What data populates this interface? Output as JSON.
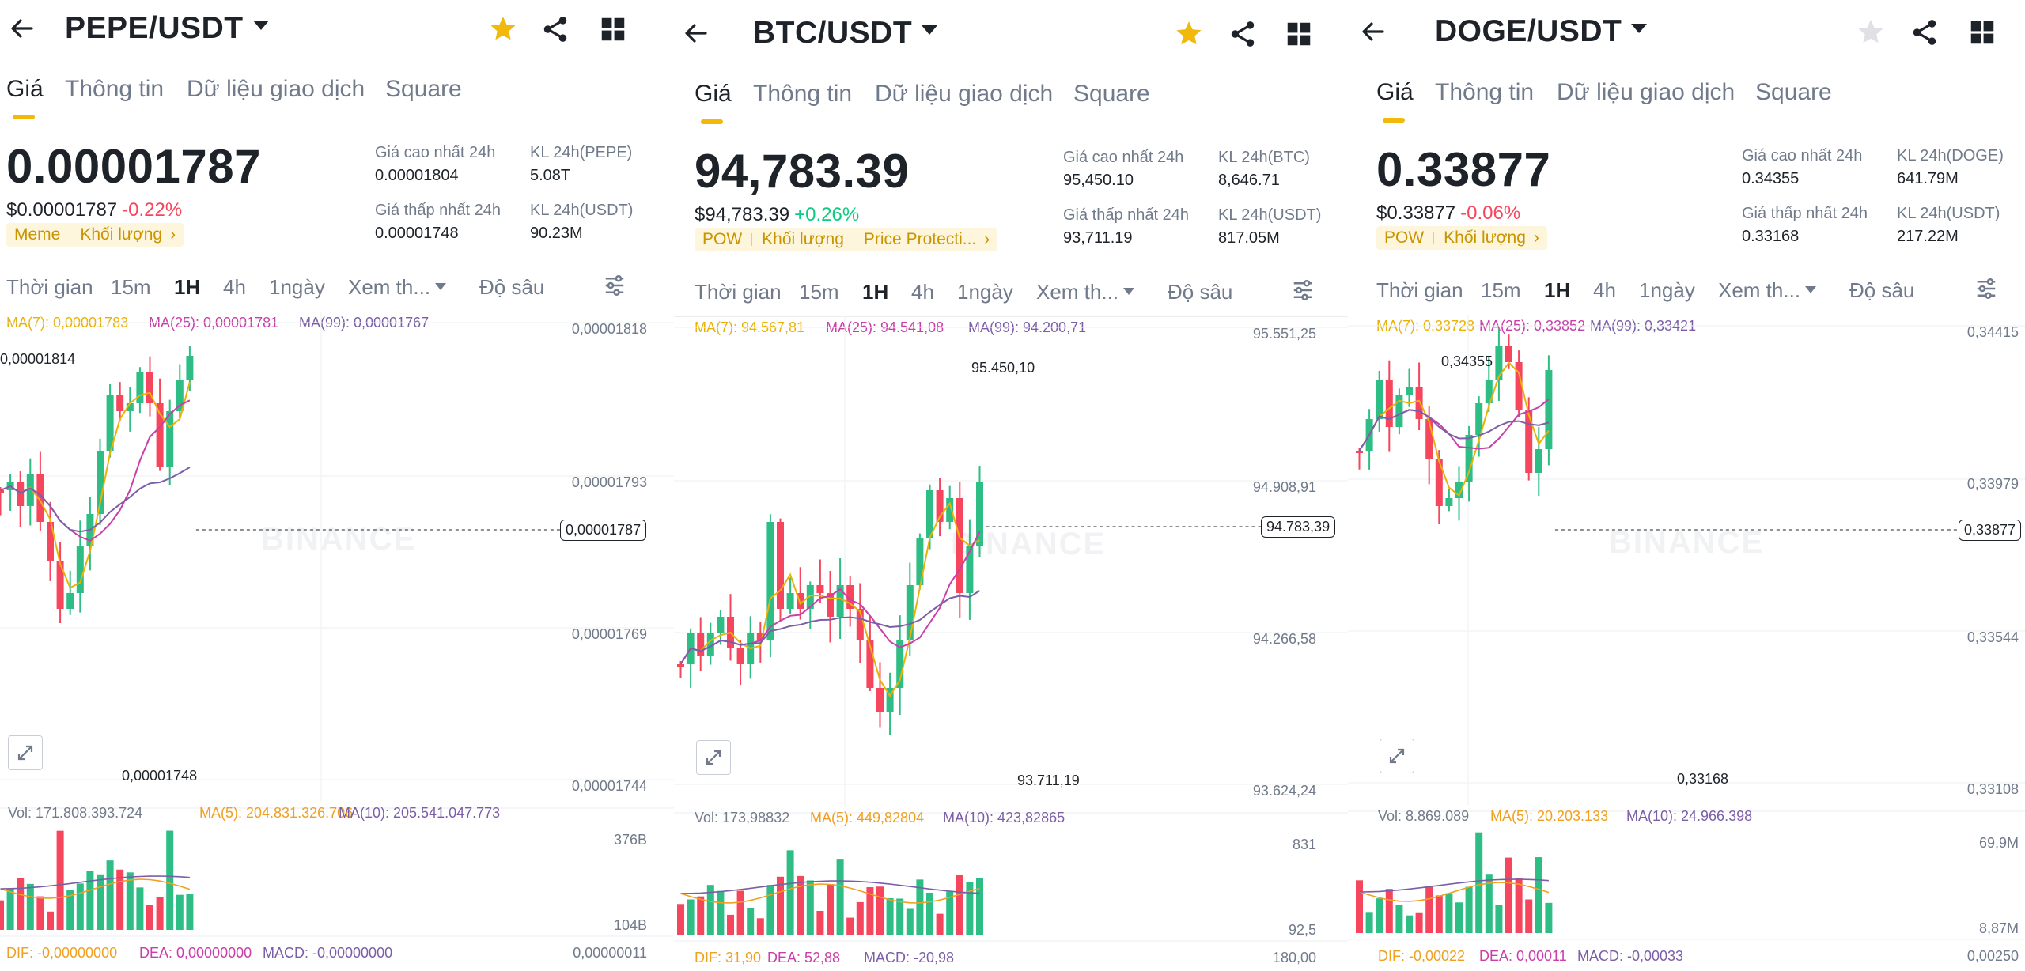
{
  "colors": {
    "up": "#2ebd85",
    "down": "#f6465d",
    "accent": "#f0b90b",
    "ma7": "#e9b208",
    "ma25": "#c93ea8",
    "ma99": "#7b5ea7"
  },
  "icons": {
    "back": "arrow-left-icon",
    "star": "star-icon",
    "share": "share-icon",
    "grid": "grid-icon",
    "settings": "chart-settings-icon",
    "expand": "expand-icon"
  },
  "panels": [
    {
      "pair": "PEPE/USDT",
      "favorite": true,
      "tabs": [
        "Giá",
        "Thông tin",
        "Dữ liệu giao dịch",
        "Square"
      ],
      "price": "0.00001787",
      "price_usd": "$0.00001787",
      "change": "-0.22%",
      "change_dir": "neg",
      "tags": [
        "Meme",
        "Khối lượng"
      ],
      "stats": {
        "high_label": "Giá cao nhất 24h",
        "high": "0.00001804",
        "vol_base_label": "KL 24h(PEPE)",
        "vol_base": "5.08T",
        "low_label": "Giá thấp nhất 24h",
        "low": "0.00001748",
        "vol_quote_label": "KL 24h(USDT)",
        "vol_quote": "90.23M"
      },
      "timeframes": [
        "Thời gian",
        "15m",
        "1H",
        "4h",
        "1ngày",
        "Xem th...",
        "Độ sâu"
      ],
      "ma_line": {
        "ma7": "MA(7): 0,00001783",
        "ma25": "MA(25): 0,00001781",
        "ma99": "MA(99): 0,00001767"
      },
      "axis": [
        "0,00001818",
        "0,00001793",
        "0,00001769",
        "0,00001744"
      ],
      "current": "0,00001787",
      "hi_ann": "0,00001814",
      "lo_ann": "0,00001748",
      "vol_line": {
        "vol": "Vol: 171.808.393.724",
        "ma5": "MA(5): 204.831.326.706",
        "ma10": "MA(10): 205.541.047.773"
      },
      "vol_axis": [
        "376B",
        "104B"
      ],
      "macd_line": {
        "dif": "DIF: -0,00000000",
        "dea": "DEA: 0,00000000",
        "macd": "MACD: -0,00000000"
      },
      "macd_axis": "0,00000011"
    },
    {
      "pair": "BTC/USDT",
      "favorite": true,
      "tabs": [
        "Giá",
        "Thông tin",
        "Dữ liệu giao dịch",
        "Square"
      ],
      "price": "94,783.39",
      "price_usd": "$94,783.39",
      "change": "+0.26%",
      "change_dir": "pos",
      "tags": [
        "POW",
        "Khối lượng",
        "Price Protecti..."
      ],
      "stats": {
        "high_label": "Giá cao nhất 24h",
        "high": "95,450.10",
        "vol_base_label": "KL 24h(BTC)",
        "vol_base": "8,646.71",
        "low_label": "Giá thấp nhất 24h",
        "low": "93,711.19",
        "vol_quote_label": "KL 24h(USDT)",
        "vol_quote": "817.05M"
      },
      "timeframes": [
        "Thời gian",
        "15m",
        "1H",
        "4h",
        "1ngày",
        "Xem th...",
        "Độ sâu"
      ],
      "ma_line": {
        "ma7": "MA(7): 94.567,81",
        "ma25": "MA(25): 94.541,08",
        "ma99": "MA(99): 94.200,71"
      },
      "axis": [
        "95.551,25",
        "94.908,91",
        "94.266,58",
        "93.624,24"
      ],
      "current": "94.783,39",
      "hi_ann": "95.450,10",
      "lo_ann": "93.711,19",
      "vol_line": {
        "vol": "Vol: 173,98832",
        "ma5": "MA(5): 449,82804",
        "ma10": "MA(10): 423,82865"
      },
      "vol_axis": [
        "831",
        "92,5"
      ],
      "macd_line": {
        "dif": "DIF: 31,90",
        "dea": "DEA: 52,88",
        "macd": "MACD: -20,98"
      },
      "macd_axis": "180,00"
    },
    {
      "pair": "DOGE/USDT",
      "favorite": false,
      "tabs": [
        "Giá",
        "Thông tin",
        "Dữ liệu giao dịch",
        "Square"
      ],
      "price": "0.33877",
      "price_usd": "$0.33877",
      "change": "-0.06%",
      "change_dir": "neg",
      "tags": [
        "POW",
        "Khối lượng"
      ],
      "stats": {
        "high_label": "Giá cao nhất 24h",
        "high": "0.34355",
        "vol_base_label": "KL 24h(DOGE)",
        "vol_base": "641.79M",
        "low_label": "Giá thấp nhất 24h",
        "low": "0.33168",
        "vol_quote_label": "KL 24h(USDT)",
        "vol_quote": "217.22M"
      },
      "timeframes": [
        "Thời gian",
        "15m",
        "1H",
        "4h",
        "1ngày",
        "Xem th...",
        "Độ sâu"
      ],
      "ma_line": {
        "ma7": "MA(7): 0,33728",
        "ma25": "MA(25): 0,33852",
        "ma99": "MA(99): 0,33421"
      },
      "axis": [
        "0,34415",
        "0,33979",
        "0,33544",
        "0,33108"
      ],
      "current": "0,33877",
      "hi_ann": "0,34355",
      "lo_ann": "0,33168",
      "vol_line": {
        "vol": "Vol: 8.869.089",
        "ma5": "MA(5): 20.203.133",
        "ma10": "MA(10): 24.966.398"
      },
      "vol_axis": [
        "69,9M",
        "8,87M"
      ],
      "macd_line": {
        "dif": "DIF: -0,00022",
        "dea": "DEA: 0,00011",
        "macd": "MACD: -0,00033"
      },
      "macd_axis": "0,00250"
    }
  ],
  "watermark": "BINANCE"
}
